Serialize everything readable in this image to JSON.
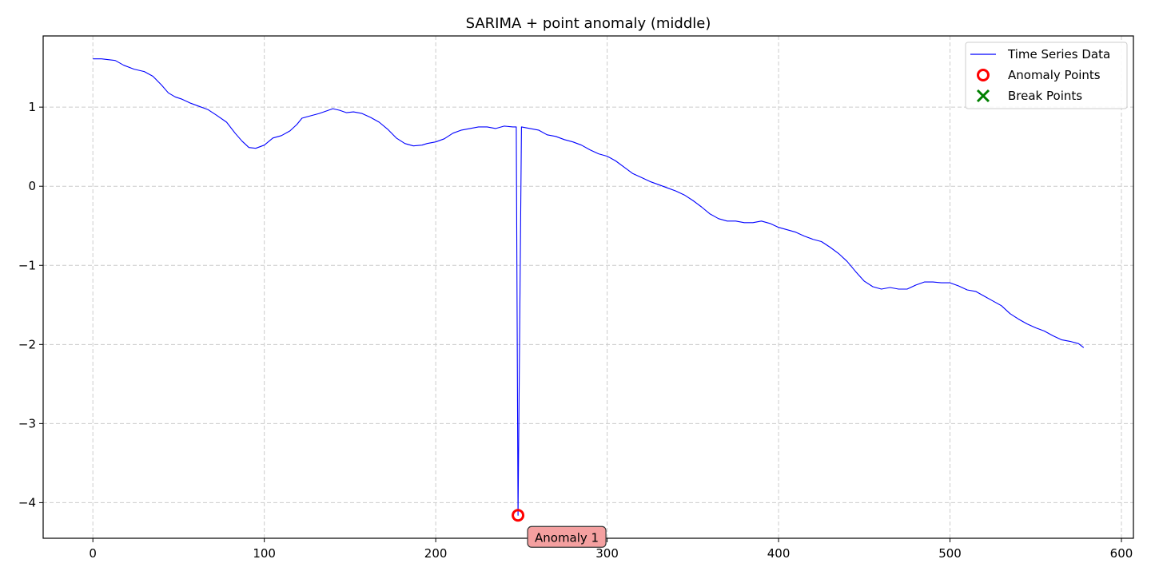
{
  "chart_data": {
    "type": "line",
    "title": "SARIMA + point anomaly (middle)",
    "xlabel": "",
    "ylabel": "",
    "xlim": [
      -29,
      607
    ],
    "ylim": [
      -4.45,
      1.9
    ],
    "x_ticks": [
      0,
      100,
      200,
      300,
      400,
      500,
      600
    ],
    "x_tick_labels": [
      "0",
      "100",
      "200",
      "300",
      "400",
      "500",
      "600"
    ],
    "y_ticks": [
      1,
      0,
      -1,
      -2,
      -3,
      -4
    ],
    "y_tick_labels": [
      "1",
      "0",
      "−1",
      "−2",
      "−3",
      "−4"
    ],
    "grid": true,
    "legend_position": "top-right",
    "colors": {
      "series": "#0000ff",
      "anomaly": "#ff0000",
      "break": "#008000",
      "annotation_fill": "#f4a0a0",
      "grid": "#cccccc"
    },
    "series": [
      {
        "name": "Time Series Data",
        "points": [
          [
            0,
            1.61
          ],
          [
            5,
            1.61
          ],
          [
            13,
            1.59
          ],
          [
            18,
            1.53
          ],
          [
            24,
            1.48
          ],
          [
            30,
            1.45
          ],
          [
            35,
            1.39
          ],
          [
            40,
            1.28
          ],
          [
            44,
            1.18
          ],
          [
            48,
            1.13
          ],
          [
            52,
            1.1
          ],
          [
            57,
            1.05
          ],
          [
            62,
            1.01
          ],
          [
            67,
            0.97
          ],
          [
            72,
            0.9
          ],
          [
            78,
            0.81
          ],
          [
            83,
            0.67
          ],
          [
            87,
            0.57
          ],
          [
            91,
            0.49
          ],
          [
            95,
            0.48
          ],
          [
            100,
            0.52
          ],
          [
            105,
            0.61
          ],
          [
            110,
            0.64
          ],
          [
            115,
            0.7
          ],
          [
            119,
            0.78
          ],
          [
            122,
            0.86
          ],
          [
            127,
            0.89
          ],
          [
            132,
            0.92
          ],
          [
            136,
            0.95
          ],
          [
            140,
            0.98
          ],
          [
            144,
            0.96
          ],
          [
            148,
            0.93
          ],
          [
            152,
            0.94
          ],
          [
            157,
            0.92
          ],
          [
            162,
            0.87
          ],
          [
            167,
            0.81
          ],
          [
            172,
            0.72
          ],
          [
            177,
            0.61
          ],
          [
            182,
            0.54
          ],
          [
            187,
            0.51
          ],
          [
            192,
            0.52
          ],
          [
            195,
            0.54
          ],
          [
            200,
            0.56
          ],
          [
            205,
            0.6
          ],
          [
            210,
            0.67
          ],
          [
            215,
            0.71
          ],
          [
            220,
            0.73
          ],
          [
            225,
            0.75
          ],
          [
            230,
            0.75
          ],
          [
            235,
            0.73
          ],
          [
            240,
            0.76
          ],
          [
            245,
            0.75
          ],
          [
            247,
            0.75
          ],
          [
            248,
            -4.16
          ],
          [
            250,
            0.75
          ],
          [
            255,
            0.73
          ],
          [
            260,
            0.71
          ],
          [
            265,
            0.65
          ],
          [
            270,
            0.63
          ],
          [
            275,
            0.59
          ],
          [
            280,
            0.56
          ],
          [
            285,
            0.52
          ],
          [
            290,
            0.46
          ],
          [
            295,
            0.41
          ],
          [
            300,
            0.38
          ],
          [
            305,
            0.32
          ],
          [
            310,
            0.24
          ],
          [
            315,
            0.16
          ],
          [
            320,
            0.11
          ],
          [
            325,
            0.06
          ],
          [
            330,
            0.02
          ],
          [
            335,
            -0.02
          ],
          [
            340,
            -0.06
          ],
          [
            345,
            -0.11
          ],
          [
            350,
            -0.18
          ],
          [
            355,
            -0.26
          ],
          [
            360,
            -0.35
          ],
          [
            365,
            -0.41
          ],
          [
            370,
            -0.44
          ],
          [
            375,
            -0.44
          ],
          [
            380,
            -0.46
          ],
          [
            385,
            -0.46
          ],
          [
            390,
            -0.44
          ],
          [
            395,
            -0.47
          ],
          [
            400,
            -0.52
          ],
          [
            405,
            -0.55
          ],
          [
            410,
            -0.58
          ],
          [
            415,
            -0.63
          ],
          [
            420,
            -0.67
          ],
          [
            425,
            -0.7
          ],
          [
            430,
            -0.77
          ],
          [
            435,
            -0.85
          ],
          [
            440,
            -0.95
          ],
          [
            445,
            -1.08
          ],
          [
            450,
            -1.2
          ],
          [
            455,
            -1.27
          ],
          [
            460,
            -1.3
          ],
          [
            465,
            -1.28
          ],
          [
            470,
            -1.3
          ],
          [
            475,
            -1.3
          ],
          [
            480,
            -1.25
          ],
          [
            485,
            -1.21
          ],
          [
            490,
            -1.21
          ],
          [
            495,
            -1.22
          ],
          [
            500,
            -1.22
          ],
          [
            505,
            -1.26
          ],
          [
            510,
            -1.31
          ],
          [
            515,
            -1.33
          ],
          [
            520,
            -1.39
          ],
          [
            525,
            -1.45
          ],
          [
            530,
            -1.51
          ],
          [
            535,
            -1.61
          ],
          [
            540,
            -1.68
          ],
          [
            545,
            -1.74
          ],
          [
            550,
            -1.79
          ],
          [
            555,
            -1.83
          ],
          [
            560,
            -1.89
          ],
          [
            565,
            -1.94
          ],
          [
            570,
            -1.96
          ],
          [
            575,
            -1.99
          ],
          [
            578,
            -2.04
          ]
        ]
      }
    ],
    "anomalies": [
      {
        "x": 248,
        "y": -4.16,
        "label": "Anomaly 1"
      }
    ],
    "break_points": [],
    "legend": [
      {
        "label": "Time Series Data",
        "marker": "line"
      },
      {
        "label": "Anomaly Points",
        "marker": "circle"
      },
      {
        "label": "Break Points",
        "marker": "x"
      }
    ]
  }
}
